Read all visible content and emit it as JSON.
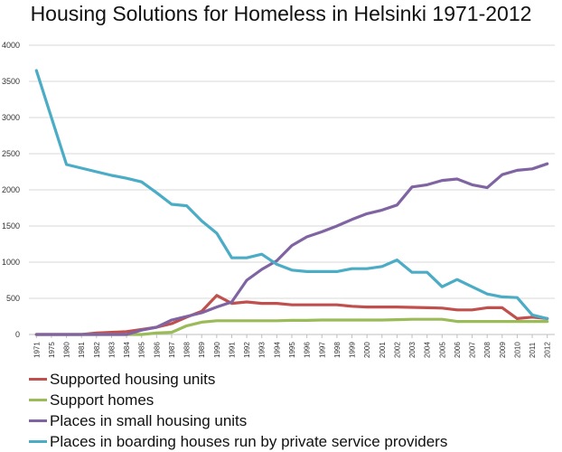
{
  "chart_data": {
    "type": "line",
    "title": "Housing Solutions for Homeless in Helsinki 1971-2012",
    "xlabel": "",
    "ylabel": "",
    "ylim": [
      0,
      4000
    ],
    "yticks": [
      "0",
      "500",
      "1000",
      "1500",
      "2000",
      "2500",
      "3000",
      "3500",
      "4000"
    ],
    "grid": true,
    "legend_position": "bottom",
    "categories": [
      "1971",
      "1975",
      "1980",
      "1981",
      "1982",
      "1983",
      "1984",
      "1985",
      "1986",
      "1987",
      "1988",
      "1989",
      "1990",
      "1991",
      "1992",
      "1993",
      "1994",
      "1995",
      "1996",
      "1997",
      "1998",
      "1999",
      "2000",
      "2001",
      "2002",
      "2003",
      "2004",
      "2005",
      "2006",
      "2007",
      "2008",
      "2009",
      "2010",
      "2011",
      "2012"
    ],
    "series": [
      {
        "name": "Supported housing units",
        "color": "#c0504d",
        "values": [
          0,
          0,
          0,
          0,
          20,
          30,
          40,
          70,
          100,
          150,
          240,
          320,
          540,
          430,
          450,
          430,
          430,
          410,
          410,
          410,
          410,
          390,
          380,
          380,
          380,
          375,
          370,
          365,
          340,
          340,
          370,
          370,
          220,
          240,
          220
        ]
      },
      {
        "name": "Support homes",
        "color": "#9bbb59",
        "values": [
          0,
          0,
          0,
          0,
          0,
          0,
          0,
          0,
          20,
          30,
          120,
          170,
          190,
          190,
          190,
          190,
          190,
          195,
          195,
          200,
          200,
          200,
          200,
          200,
          205,
          210,
          210,
          210,
          180,
          180,
          180,
          180,
          180,
          180,
          180
        ]
      },
      {
        "name": "Places in small housing units",
        "color": "#8064a2",
        "values": [
          0,
          0,
          0,
          0,
          0,
          0,
          0,
          60,
          100,
          200,
          250,
          300,
          380,
          450,
          750,
          900,
          1020,
          1230,
          1350,
          1420,
          1500,
          1590,
          1670,
          1720,
          1790,
          2040,
          2070,
          2130,
          2150,
          2070,
          2030,
          2210,
          2270,
          2290,
          2360
        ]
      },
      {
        "name": "Places in boarding houses run by private service providers",
        "color": "#4bacc6",
        "values": [
          3650,
          3000,
          2350,
          2300,
          2250,
          2200,
          2160,
          2110,
          1960,
          1800,
          1780,
          1570,
          1400,
          1060,
          1060,
          1110,
          970,
          890,
          870,
          870,
          870,
          910,
          910,
          940,
          1030,
          860,
          860,
          660,
          760,
          660,
          560,
          520,
          510,
          270,
          220
        ]
      }
    ]
  }
}
